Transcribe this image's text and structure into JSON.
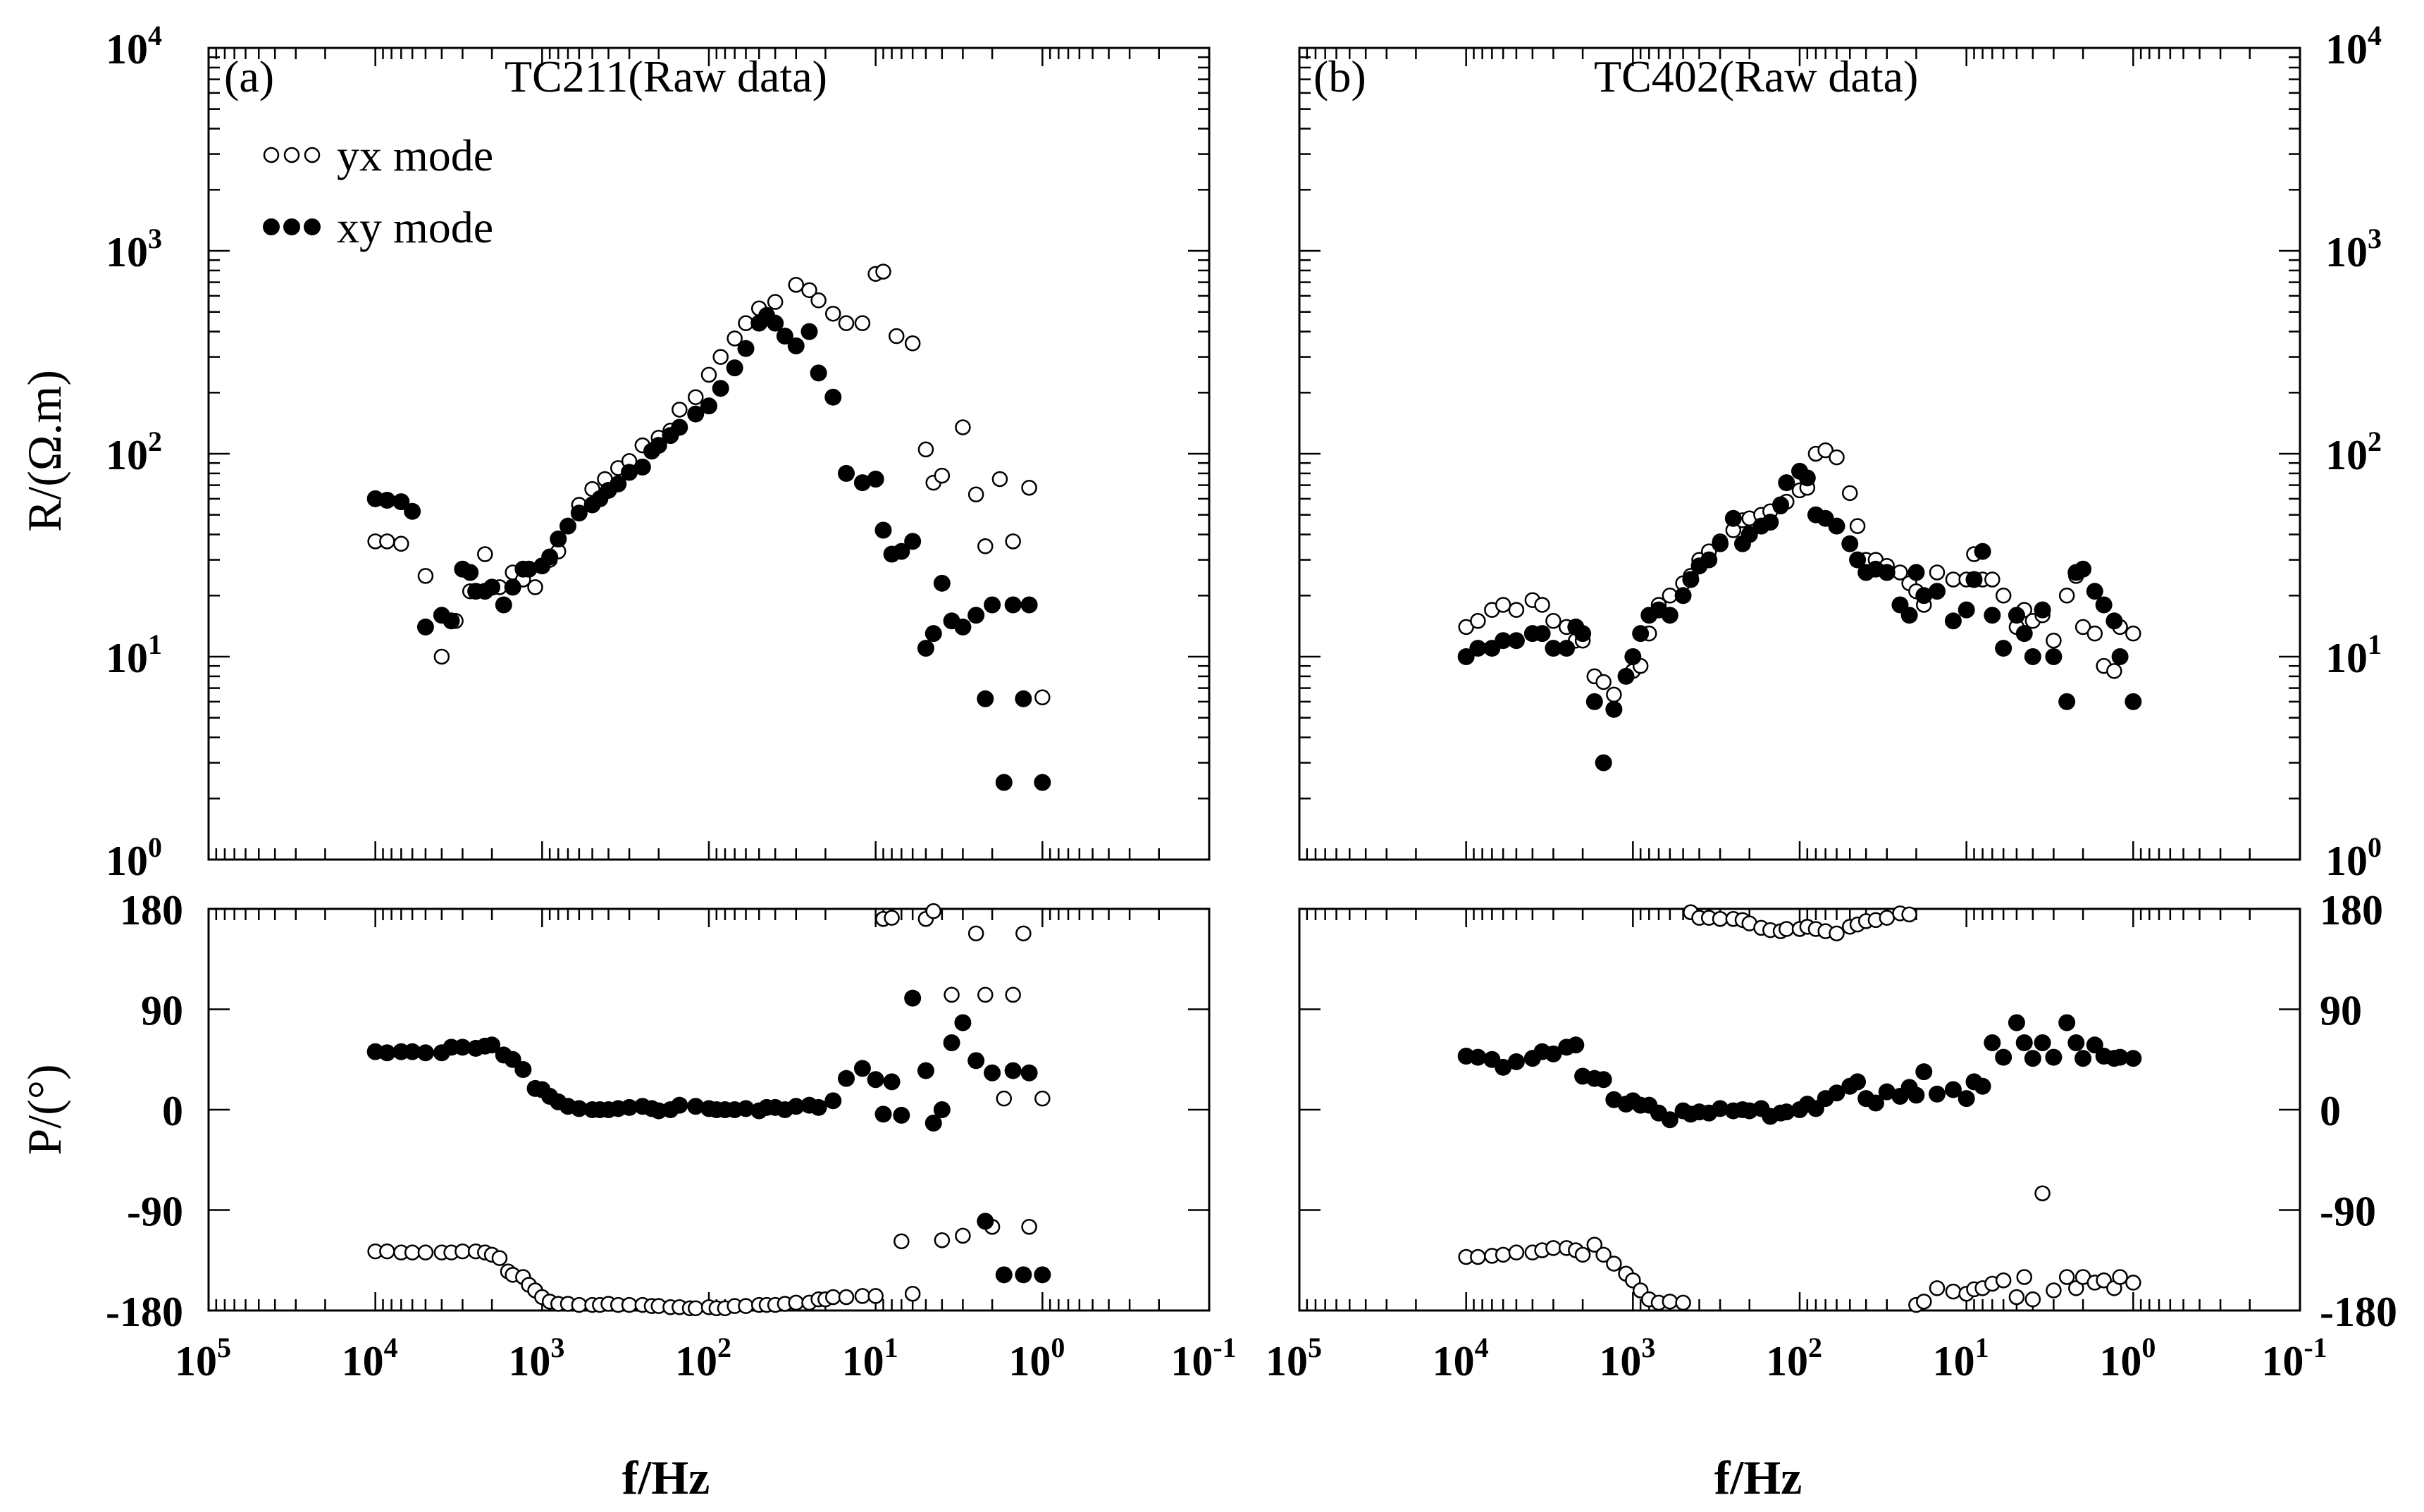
{
  "chart_data": [
    {
      "type": "scatter",
      "panel": "a-top",
      "label": "(a)",
      "title": "TC211(Raw data)",
      "ylabel": "R/(Ω.m)",
      "yscale": "log",
      "ylim": [
        1,
        10000
      ],
      "xscale": "log",
      "xlim": [
        100000,
        0.1
      ],
      "legend": [
        "yx mode",
        "xy mode"
      ],
      "series": [
        {
          "name": "yx mode",
          "marker": "open-circle",
          "x": [
            10000,
            8500,
            7000,
            5000,
            4000,
            3300,
            2700,
            2200,
            1800,
            1500,
            1300,
            1100,
            1000,
            900,
            800,
            700,
            600,
            500,
            420,
            350,
            300,
            250,
            200,
            170,
            150,
            120,
            100,
            85,
            70,
            60,
            50,
            40,
            30,
            25,
            22,
            18,
            15,
            12,
            10,
            9,
            7.5,
            6,
            5,
            4.5,
            4,
            3,
            2.5,
            2.2,
            1.8,
            1.5,
            1.2,
            1
          ],
          "y": [
            37,
            37,
            36,
            25,
            10,
            15,
            21,
            32,
            22,
            26,
            24,
            22,
            28,
            30,
            33,
            44,
            56,
            67,
            75,
            85,
            92,
            110,
            120,
            130,
            165,
            190,
            245,
            300,
            370,
            440,
            520,
            560,
            680,
            640,
            570,
            490,
            440,
            440,
            770,
            790,
            380,
            350,
            105,
            72,
            78,
            135,
            63,
            35,
            75,
            37,
            68,
            6.3
          ]
        },
        {
          "name": "xy mode",
          "marker": "filled-circle",
          "x": [
            10000,
            8500,
            7000,
            6000,
            5000,
            4000,
            3500,
            3000,
            2700,
            2500,
            2200,
            2000,
            1700,
            1500,
            1300,
            1200,
            1000,
            900,
            800,
            700,
            600,
            500,
            450,
            400,
            350,
            300,
            250,
            220,
            200,
            170,
            150,
            120,
            100,
            85,
            70,
            60,
            50,
            45,
            40,
            35,
            30,
            25,
            22,
            18,
            15,
            12,
            10,
            9,
            8,
            7,
            6,
            5,
            4.5,
            4,
            3.5,
            3,
            2.5,
            2.2,
            2,
            1.7,
            1.5,
            1.3,
            1.2,
            1
          ],
          "y": [
            60,
            59,
            58,
            52,
            14,
            16,
            15,
            27,
            26,
            21,
            21,
            22,
            18,
            22,
            27,
            27,
            28,
            31,
            38,
            44,
            51,
            56,
            60,
            66,
            71,
            81,
            86,
            103,
            110,
            123,
            135,
            157,
            172,
            210,
            265,
            330,
            440,
            480,
            440,
            380,
            340,
            400,
            250,
            190,
            80,
            72,
            75,
            42,
            32,
            33,
            37,
            11,
            13,
            23,
            15,
            14,
            16,
            6.2,
            18,
            2.4,
            18,
            6.2,
            18,
            2.4
          ]
        }
      ]
    },
    {
      "type": "scatter",
      "panel": "a-bottom",
      "ylabel": "P/(°)",
      "ylim": [
        -180,
        180
      ],
      "yticks": [
        180,
        90,
        0,
        -90,
        -180
      ],
      "xlabel": "f/Hz",
      "xscale": "log",
      "xlim": [
        100000,
        0.1
      ],
      "xticks": [
        "10^5",
        "10^4",
        "10^3",
        "10^2",
        "10^1",
        "10^0",
        "10^-1"
      ],
      "series": [
        {
          "name": "yx mode",
          "marker": "open-circle",
          "x": [
            10000,
            8500,
            7000,
            6000,
            5000,
            4000,
            3500,
            3000,
            2500,
            2200,
            2000,
            1800,
            1600,
            1500,
            1300,
            1200,
            1100,
            1000,
            900,
            800,
            700,
            600,
            500,
            450,
            400,
            350,
            300,
            250,
            220,
            200,
            170,
            150,
            130,
            120,
            100,
            90,
            80,
            70,
            60,
            50,
            45,
            40,
            35,
            30,
            25,
            22,
            20,
            18,
            15,
            12,
            10,
            9,
            8,
            7,
            6,
            5,
            4.5,
            4,
            3.5,
            3,
            2.5,
            2.2,
            2,
            1.7,
            1.5,
            1.3,
            1.2,
            1
          ],
          "y": [
            -127,
            -127,
            -128,
            -128,
            -128,
            -128,
            -128,
            -127,
            -127,
            -128,
            -130,
            -133,
            -145,
            -148,
            -150,
            -157,
            -162,
            -168,
            -172,
            -174,
            -174,
            -175,
            -175,
            -175,
            -174,
            -175,
            -175,
            -175,
            -176,
            -176,
            -177,
            -177,
            -178,
            -178,
            -177,
            -178,
            -178,
            -176,
            -176,
            -175,
            -175,
            -175,
            -174,
            -173,
            -173,
            -170,
            -170,
            -168,
            -168,
            -167,
            -167,
            171,
            172,
            -118,
            -165,
            171,
            178,
            -117,
            103,
            -113,
            158,
            103,
            -105,
            10,
            103,
            158,
            -105,
            10
          ]
        },
        {
          "name": "xy mode",
          "marker": "filled-circle",
          "x": [
            10000,
            8500,
            7000,
            6000,
            5000,
            4000,
            3500,
            3000,
            2500,
            2200,
            2000,
            1700,
            1500,
            1300,
            1100,
            1000,
            900,
            800,
            700,
            600,
            500,
            450,
            400,
            350,
            300,
            250,
            220,
            200,
            170,
            150,
            120,
            100,
            90,
            80,
            70,
            60,
            50,
            45,
            40,
            35,
            30,
            25,
            22,
            18,
            15,
            12,
            10,
            9,
            8,
            7,
            6,
            5,
            4.5,
            4,
            3.5,
            3,
            2.5,
            2.2,
            2,
            1.7,
            1.5,
            1.3,
            1.2,
            1
          ],
          "y": [
            52,
            51,
            52,
            52,
            51,
            51,
            56,
            56,
            55,
            57,
            58,
            49,
            45,
            36,
            19,
            18,
            12,
            7,
            3,
            1,
            0,
            0,
            0,
            1,
            2,
            3,
            1,
            -1,
            0,
            4,
            3,
            1,
            0,
            0,
            0,
            1,
            -1,
            2,
            2,
            0,
            3,
            4,
            2,
            8,
            28,
            37,
            27,
            -4,
            25,
            -5,
            100,
            35,
            -12,
            0,
            60,
            78,
            44,
            -100,
            33,
            -148,
            35,
            -148,
            33,
            -148
          ]
        }
      ]
    },
    {
      "type": "scatter",
      "panel": "b-top",
      "label": "(b)",
      "title": "TC402(Raw data)",
      "ylabel": "R/(Ω.m)",
      "yscale": "log",
      "ylim": [
        1,
        10000
      ],
      "xscale": "log",
      "xlim": [
        100000,
        0.1
      ],
      "series": [
        {
          "name": "yx mode",
          "marker": "open-circle",
          "x": [
            10000,
            8500,
            7000,
            6000,
            5000,
            4000,
            3500,
            3000,
            2500,
            2200,
            2000,
            1700,
            1500,
            1300,
            1100,
            1000,
            900,
            800,
            700,
            600,
            500,
            450,
            400,
            350,
            300,
            250,
            220,
            200,
            170,
            150,
            130,
            120,
            100,
            90,
            80,
            70,
            60,
            50,
            45,
            40,
            35,
            30,
            25,
            22,
            20,
            18,
            15,
            12,
            10,
            9,
            8,
            7,
            6,
            5,
            4.5,
            4,
            3.5,
            3,
            2.5,
            2.2,
            2,
            1.7,
            1.5,
            1.3,
            1.2,
            1
          ],
          "y": [
            14,
            15,
            17,
            18,
            17,
            19,
            18,
            15,
            14,
            12,
            12,
            8,
            7.5,
            6.5,
            8,
            8.5,
            9,
            13,
            18,
            20,
            23,
            25,
            30,
            33,
            37,
            42,
            47,
            48,
            50,
            52,
            55,
            58,
            66,
            68,
            100,
            104,
            96,
            64,
            44,
            30,
            30,
            28,
            26,
            23,
            21,
            18,
            26,
            24,
            24,
            32,
            24,
            24,
            20,
            14,
            17,
            15,
            16,
            12,
            20,
            25,
            14,
            13,
            9,
            8.5,
            14,
            13
          ]
        },
        {
          "name": "xy mode",
          "marker": "filled-circle",
          "x": [
            10000,
            8500,
            7000,
            6000,
            5000,
            4000,
            3500,
            3000,
            2500,
            2200,
            2000,
            1700,
            1500,
            1300,
            1100,
            1000,
            900,
            800,
            700,
            600,
            500,
            450,
            400,
            350,
            300,
            250,
            220,
            200,
            170,
            150,
            130,
            120,
            100,
            90,
            80,
            70,
            60,
            50,
            45,
            40,
            35,
            30,
            25,
            22,
            20,
            18,
            15,
            12,
            10,
            9,
            8,
            7,
            6,
            5,
            4.5,
            4,
            3.5,
            3,
            2.5,
            2.2,
            2,
            1.7,
            1.5,
            1.3,
            1.2,
            1
          ],
          "y": [
            10,
            11,
            11,
            12,
            12,
            13,
            13,
            11,
            11,
            14,
            13,
            6,
            3,
            5.5,
            8,
            10,
            13,
            16,
            17,
            16,
            20,
            24,
            28,
            30,
            36,
            48,
            36,
            40,
            44,
            46,
            56,
            72,
            82,
            76,
            50,
            48,
            44,
            36,
            30,
            26,
            27,
            26,
            18,
            16,
            26,
            20,
            21,
            15,
            17,
            24,
            33,
            16,
            11,
            16,
            13,
            10,
            17,
            10,
            6,
            26,
            27,
            21,
            18,
            15,
            10,
            6
          ]
        }
      ]
    },
    {
      "type": "scatter",
      "panel": "b-bottom",
      "ylabel": "P/(°)",
      "ylim": [
        -180,
        180
      ],
      "yticks": [
        180,
        90,
        0,
        -90,
        -180
      ],
      "xlabel": "f/Hz",
      "xscale": "log",
      "xlim": [
        100000,
        0.1
      ],
      "xticks": [
        "10^5",
        "10^4",
        "10^3",
        "10^2",
        "10^1",
        "10^0",
        "10^-1"
      ],
      "series": [
        {
          "name": "yx mode",
          "marker": "open-circle",
          "x": [
            10000,
            8500,
            7000,
            6000,
            5000,
            4000,
            3500,
            3000,
            2500,
            2200,
            2000,
            1700,
            1500,
            1300,
            1100,
            1000,
            900,
            800,
            700,
            600,
            500,
            450,
            400,
            350,
            300,
            250,
            220,
            200,
            170,
            150,
            130,
            120,
            100,
            90,
            80,
            70,
            60,
            50,
            45,
            40,
            35,
            30,
            25,
            22,
            20,
            18,
            15,
            12,
            10,
            9,
            8,
            7,
            6,
            5,
            4.5,
            4,
            3.5,
            3,
            2.5,
            2.2,
            2,
            1.7,
            1.5,
            1.3,
            1.2,
            1
          ],
          "y": [
            -132,
            -132,
            -131,
            -130,
            -128,
            -128,
            -126,
            -124,
            -124,
            -126,
            -130,
            -121,
            -130,
            -138,
            -147,
            -153,
            -162,
            -170,
            -173,
            -172,
            -173,
            177,
            172,
            172,
            171,
            171,
            170,
            167,
            163,
            161,
            160,
            162,
            162,
            164,
            162,
            160,
            158,
            164,
            166,
            169,
            170,
            172,
            176,
            175,
            -175,
            -172,
            -160,
            -163,
            -165,
            -161,
            -160,
            -156,
            -153,
            -168,
            -150,
            -170,
            -75,
            -162,
            -150,
            -160,
            -150,
            -155,
            -153,
            -160,
            -150,
            -155
          ]
        },
        {
          "name": "xy mode",
          "marker": "filled-circle",
          "x": [
            10000,
            8500,
            7000,
            6000,
            5000,
            4000,
            3500,
            3000,
            2500,
            2200,
            2000,
            1700,
            1500,
            1300,
            1100,
            1000,
            900,
            800,
            700,
            600,
            500,
            450,
            400,
            350,
            300,
            250,
            220,
            200,
            170,
            150,
            130,
            120,
            100,
            90,
            80,
            70,
            60,
            50,
            45,
            40,
            35,
            30,
            25,
            22,
            20,
            18,
            15,
            12,
            10,
            9,
            8,
            7,
            6,
            5,
            4.5,
            4,
            3.5,
            3,
            2.5,
            2.2,
            2,
            1.7,
            1.5,
            1.3,
            1.2,
            1
          ],
          "y": [
            48,
            47,
            45,
            38,
            43,
            46,
            52,
            50,
            56,
            58,
            30,
            28,
            27,
            9,
            5,
            8,
            4,
            4,
            -3,
            -9,
            -1,
            -4,
            -2,
            -3,
            1,
            -1,
            0,
            -1,
            1,
            -6,
            -3,
            -2,
            0,
            5,
            1,
            10,
            15,
            21,
            25,
            10,
            6,
            16,
            12,
            20,
            13,
            34,
            14,
            18,
            10,
            25,
            21,
            60,
            47,
            78,
            60,
            46,
            60,
            47,
            78,
            60,
            46,
            58,
            48,
            46,
            47,
            46
          ]
        }
      ]
    }
  ],
  "legend": {
    "yx_label": "yx mode",
    "xy_label": "xy mode"
  }
}
